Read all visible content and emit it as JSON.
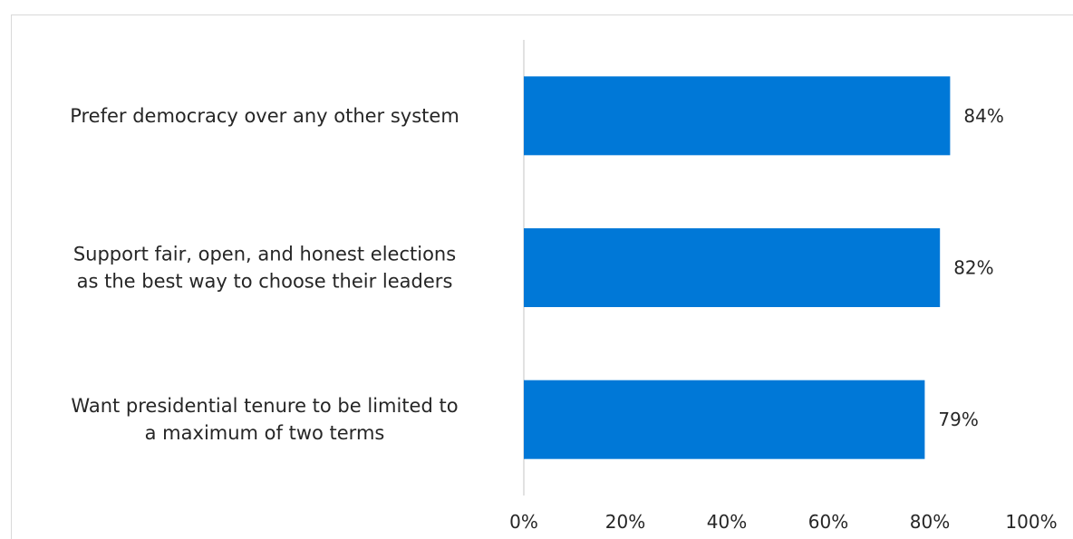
{
  "chart_data": {
    "type": "bar",
    "orientation": "horizontal",
    "title": "",
    "xlabel": "",
    "ylabel": "",
    "categories": [
      [
        "Prefer democracy over any other system"
      ],
      [
        "Support fair, open, and honest elections",
        "as the best way to choose their leaders"
      ],
      [
        "Want presidential tenure to be limited to",
        "a maximum of two terms"
      ]
    ],
    "values": [
      84,
      82,
      79
    ],
    "data_labels": [
      "84%",
      "82%",
      "79%"
    ],
    "xlim": [
      0,
      100
    ],
    "x_ticks": [
      0,
      20,
      40,
      60,
      80,
      100
    ],
    "x_tick_labels": [
      "0%",
      "20%",
      "40%",
      "60%",
      "80%",
      "100%"
    ],
    "bar_color": "#0078D7",
    "axis_color": "#D9D9D9",
    "grid": false,
    "legend": "none"
  }
}
